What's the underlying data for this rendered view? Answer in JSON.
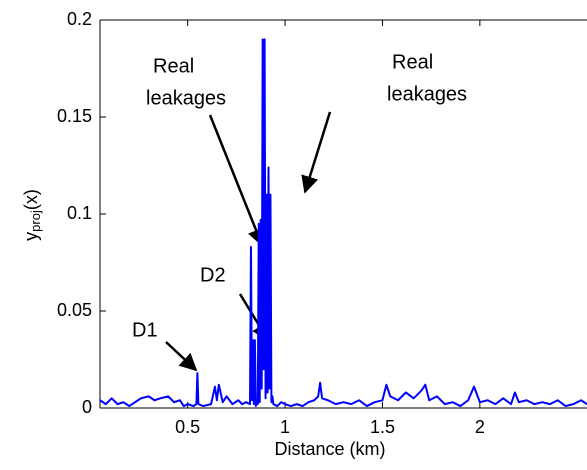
{
  "chart_data": {
    "type": "line",
    "xlabel": "Distance (km)",
    "ylabel": [
      "y",
      "proj",
      "(x)"
    ],
    "annotations": [
      [
        "Real",
        "leakages"
      ],
      [
        "Real",
        "leakages"
      ],
      "D2",
      "D1"
    ],
    "xlim": [
      0.05,
      2.55
    ],
    "ylim": [
      0,
      0.2
    ],
    "xticks": [
      0.5,
      1,
      1.5,
      2
    ],
    "yticks": [
      0,
      0.05,
      0.1,
      0.15,
      0.2
    ],
    "x": [
      0.05,
      0.08,
      0.11,
      0.14,
      0.17,
      0.2,
      0.23,
      0.26,
      0.3,
      0.33,
      0.36,
      0.4,
      0.43,
      0.46,
      0.48,
      0.5,
      0.53,
      0.545,
      0.55,
      0.555,
      0.58,
      0.62,
      0.64,
      0.65,
      0.66,
      0.68,
      0.7,
      0.73,
      0.76,
      0.78,
      0.8,
      0.82,
      0.825,
      0.83,
      0.835,
      0.84,
      0.845,
      0.85,
      0.855,
      0.86,
      0.865,
      0.87,
      0.875,
      0.88,
      0.885,
      0.89,
      0.895,
      0.9,
      0.905,
      0.91,
      0.915,
      0.92,
      0.925,
      0.93,
      0.935,
      0.94,
      0.96,
      0.98,
      1.0,
      1.03,
      1.06,
      1.09,
      1.12,
      1.15,
      1.17,
      1.18,
      1.19,
      1.22,
      1.26,
      1.3,
      1.34,
      1.38,
      1.42,
      1.46,
      1.5,
      1.52,
      1.54,
      1.58,
      1.62,
      1.66,
      1.7,
      1.72,
      1.74,
      1.78,
      1.82,
      1.86,
      1.9,
      1.94,
      1.97,
      2.0,
      2.04,
      2.08,
      2.12,
      2.16,
      2.18,
      2.2,
      2.24,
      2.28,
      2.32,
      2.36,
      2.4,
      2.44,
      2.48,
      2.52,
      2.55
    ],
    "series": [
      {
        "color": "#0000ff",
        "values": [
          0.004,
          0.002,
          0.005,
          0.002,
          0.003,
          0.001,
          0.003,
          0.005,
          0.006,
          0.004,
          0.005,
          0.006,
          0.003,
          0.004,
          0.001,
          0.002,
          0.001,
          0.002,
          0.018,
          0.002,
          0.001,
          0.002,
          0.011,
          0.004,
          0.012,
          0.003,
          0.006,
          0.002,
          0.004,
          0.002,
          0.003,
          0.002,
          0.083,
          0.004,
          0.035,
          0.002,
          0.035,
          0.001,
          0.004,
          0.002,
          0.095,
          0.003,
          0.097,
          0.01,
          0.19,
          0.02,
          0.19,
          0.005,
          0.11,
          0.008,
          0.124,
          0.01,
          0.11,
          0.003,
          0.006,
          0.002,
          0.001,
          0.003,
          0.002,
          0.001,
          0.002,
          0.001,
          0.003,
          0.004,
          0.006,
          0.013,
          0.005,
          0.004,
          0.002,
          0.003,
          0.002,
          0.004,
          0.001,
          0.003,
          0.004,
          0.012,
          0.006,
          0.004,
          0.008,
          0.005,
          0.009,
          0.012,
          0.004,
          0.006,
          0.002,
          0.003,
          0.001,
          0.004,
          0.011,
          0.003,
          0.004,
          0.002,
          0.005,
          0.002,
          0.008,
          0.003,
          0.004,
          0.002,
          0.003,
          0.002,
          0.004,
          0.001,
          0.002,
          0.004,
          0.002
        ]
      }
    ]
  }
}
